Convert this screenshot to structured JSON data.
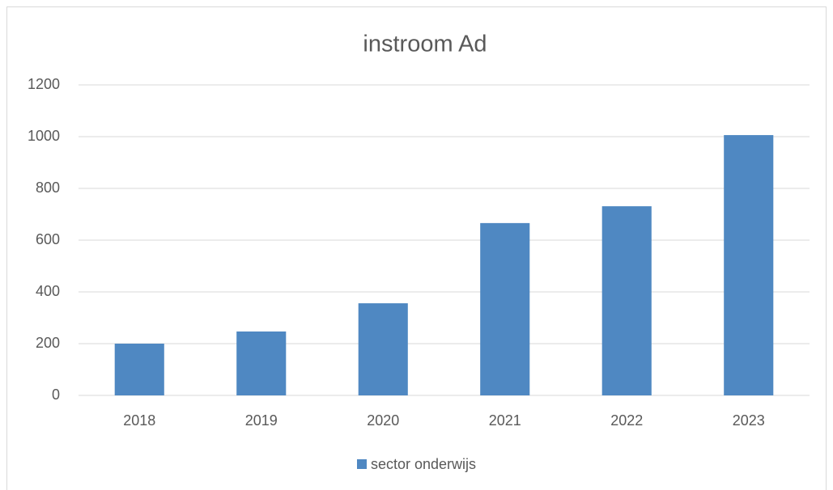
{
  "chart_data": {
    "type": "bar",
    "title": "instroom Ad",
    "categories": [
      "2018",
      "2019",
      "2020",
      "2021",
      "2022",
      "2023"
    ],
    "series": [
      {
        "name": "sector onderwijs",
        "color": "#4f88c2",
        "values": [
          200,
          247,
          356,
          666,
          731,
          1006
        ]
      }
    ],
    "ylim": [
      0,
      1200
    ],
    "yticks": [
      0,
      200,
      400,
      600,
      800,
      1000,
      1200
    ],
    "grid": true,
    "legend": "bottom"
  }
}
